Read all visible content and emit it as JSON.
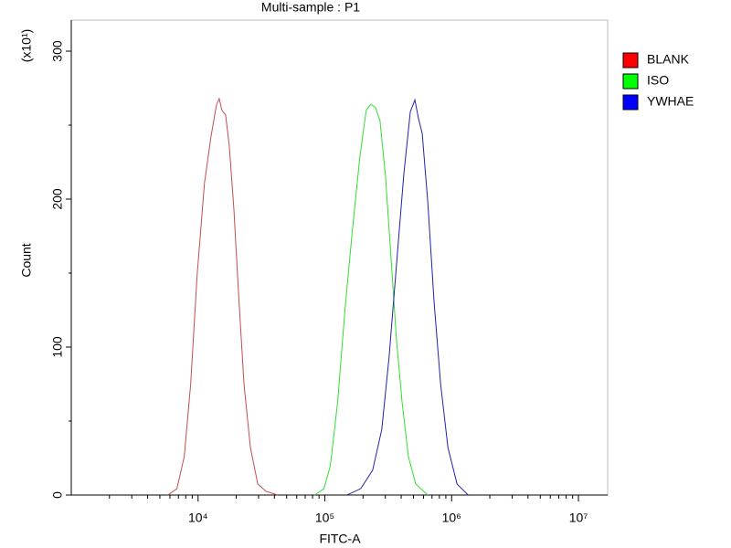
{
  "chart_data": {
    "type": "histogram-overlay",
    "title": "Multi-sample : P1",
    "x_label": "FITC-A",
    "y_label": "Count",
    "y_multiplier": "(x10¹)",
    "x_scale": "log",
    "xlim": [
      1000,
      17000000
    ],
    "xticks": [
      {
        "value": 10000,
        "label": "10⁴"
      },
      {
        "value": 100000,
        "label": "10⁵"
      },
      {
        "value": 1000000,
        "label": "10⁶"
      },
      {
        "value": 10000000,
        "label": "10⁷"
      }
    ],
    "ylim": [
      0,
      321
    ],
    "yticks": [
      0,
      100,
      200,
      300
    ],
    "legend": "right",
    "series": [
      {
        "name": "BLANK",
        "color": "#c0504d",
        "legend_color": "#ff0000",
        "x": [
          5770,
          6810,
          7780,
          8750,
          9840,
          11240,
          12630,
          13960,
          14680,
          15420,
          16490,
          17630,
          19180,
          20840,
          23030,
          25880,
          29580,
          34360,
          42660
        ],
        "values": [
          0,
          4.3,
          25.9,
          75.3,
          149,
          211,
          242,
          263.6,
          268,
          260,
          257,
          236,
          193,
          137,
          75,
          32,
          7.4,
          2.5,
          0
        ]
      },
      {
        "name": "ISO",
        "color": "#33dd33",
        "legend_color": "#00ff00",
        "x": [
          83180,
          98390,
          110500,
          126200,
          144300,
          164900,
          188500,
          211900,
          230300,
          250600,
          272200,
          300600,
          332700,
          367300,
          406400,
          456000,
          521200,
          648600
        ],
        "values": [
          0,
          4.3,
          19.8,
          63,
          126,
          179,
          228,
          260,
          264,
          262,
          253,
          216,
          160,
          105,
          63,
          26,
          7.4,
          0
        ]
      },
      {
        "name": "YWHAE",
        "color": "#2222aa",
        "legend_color": "#0000ff",
        "x": [
          149300,
          191800,
          238100,
          281300,
          321500,
          367300,
          419800,
          472100,
          512900,
          548300,
          586100,
          648600,
          727800,
          818500,
          935400,
          1104000,
          1349000
        ],
        "values": [
          0,
          4.3,
          16.7,
          44.4,
          93.8,
          155.6,
          217,
          259,
          267,
          254.3,
          244.4,
          198,
          130,
          75,
          32,
          7.4,
          0
        ]
      }
    ]
  }
}
